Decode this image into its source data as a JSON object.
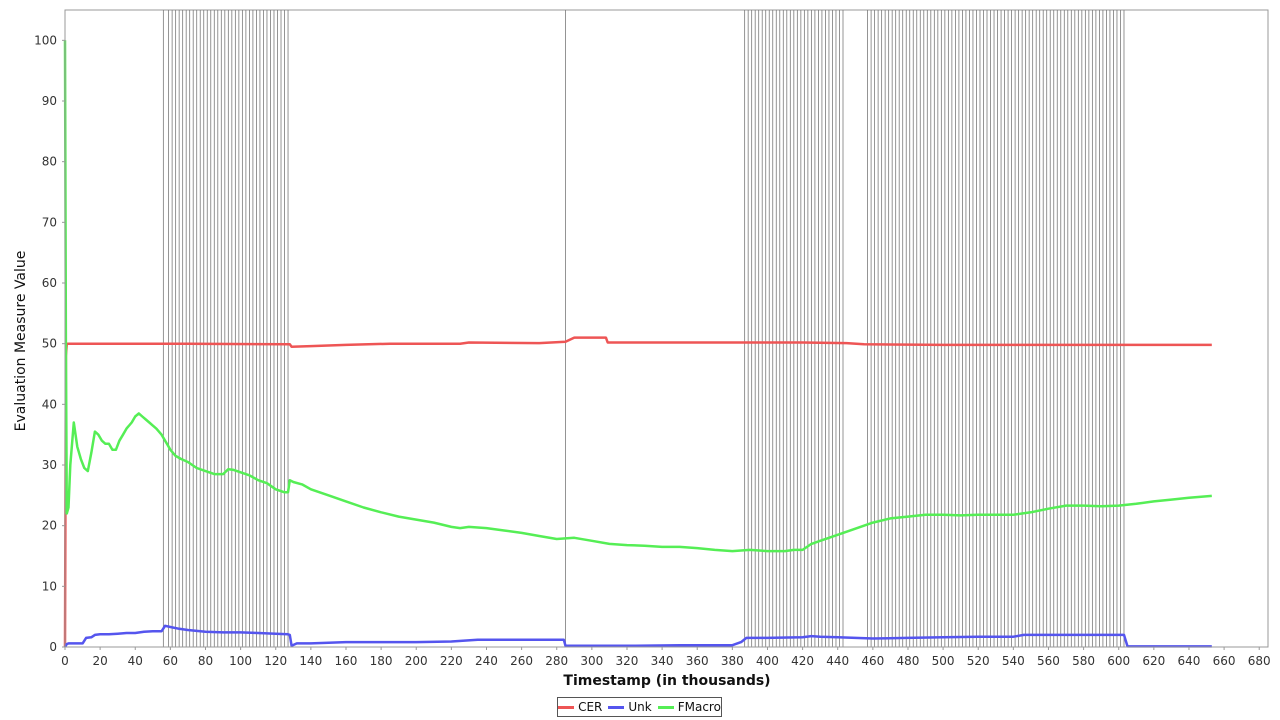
{
  "chart_data": {
    "type": "line",
    "xlabel": "Timestamp (in thousands)",
    "ylabel": "Evaluation Measure Value",
    "xlim": [
      0,
      685
    ],
    "ylim": [
      0,
      105
    ],
    "xticks": [
      0,
      20,
      40,
      60,
      80,
      100,
      120,
      140,
      160,
      180,
      200,
      220,
      240,
      260,
      280,
      300,
      320,
      340,
      360,
      380,
      400,
      420,
      440,
      460,
      480,
      500,
      520,
      540,
      560,
      580,
      600,
      620,
      640,
      660,
      680
    ],
    "yticks": [
      0,
      10,
      20,
      30,
      40,
      50,
      60,
      70,
      80,
      90,
      100
    ],
    "legend_position": "bottom-center",
    "grid": false,
    "drift_markers": [
      56,
      59,
      61,
      63,
      65,
      67,
      69,
      71,
      73,
      75,
      77,
      79,
      81,
      83,
      85,
      87,
      89,
      91,
      93,
      95,
      97,
      99,
      101,
      103,
      105,
      107,
      109,
      111,
      113,
      115,
      117,
      119,
      121,
      123,
      125,
      127,
      285,
      387,
      389,
      391,
      393,
      395,
      397,
      399,
      401,
      403,
      405,
      407,
      409,
      411,
      413,
      415,
      417,
      419,
      421,
      423,
      425,
      427,
      429,
      431,
      433,
      435,
      437,
      439,
      441,
      443,
      457,
      459,
      461,
      463,
      465,
      467,
      469,
      471,
      473,
      475,
      477,
      479,
      481,
      483,
      485,
      487,
      489,
      491,
      493,
      495,
      497,
      499,
      501,
      503,
      505,
      507,
      509,
      511,
      513,
      515,
      517,
      519,
      521,
      523,
      525,
      527,
      529,
      531,
      533,
      535,
      537,
      539,
      541,
      543,
      545,
      547,
      549,
      551,
      553,
      555,
      557,
      559,
      561,
      563,
      565,
      567,
      569,
      571,
      573,
      575,
      577,
      579,
      581,
      583,
      585,
      587,
      589,
      591,
      593,
      595,
      597,
      599,
      601,
      603
    ],
    "series": [
      {
        "name": "CER",
        "color": "#ee5555",
        "x": [
          0,
          0.5,
          1,
          10,
          70,
          128,
          129,
          140,
          160,
          185,
          225,
          230,
          270,
          285,
          290,
          308,
          309,
          360,
          420,
          445,
          455,
          500,
          560,
          653
        ],
        "y": [
          0,
          48,
          50,
          50,
          50,
          49.9,
          49.5,
          49.6,
          49.8,
          50,
          50,
          50.2,
          50.1,
          50.3,
          51,
          51,
          50.2,
          50.2,
          50.2,
          50.1,
          49.9,
          49.8,
          49.8,
          49.8
        ]
      },
      {
        "name": "Unk",
        "color": "#5555ee",
        "x": [
          0,
          1,
          2,
          10,
          12,
          15,
          17,
          20,
          25,
          30,
          35,
          40,
          45,
          50,
          55,
          57,
          60,
          65,
          70,
          80,
          90,
          100,
          110,
          120,
          127,
          128,
          129,
          132,
          140,
          160,
          200,
          220,
          235,
          260,
          284,
          285,
          290,
          320,
          350,
          380,
          385,
          388,
          400,
          420,
          425,
          430,
          440,
          460,
          480,
          500,
          520,
          540,
          546,
          560,
          580,
          603,
          605,
          620,
          653
        ],
        "y": [
          0,
          0.5,
          0.6,
          0.6,
          1.5,
          1.6,
          2.0,
          2.1,
          2.1,
          2.2,
          2.3,
          2.3,
          2.5,
          2.6,
          2.6,
          3.5,
          3.3,
          3.0,
          2.8,
          2.5,
          2.4,
          2.4,
          2.3,
          2.2,
          2.1,
          2.0,
          0.2,
          0.6,
          0.6,
          0.8,
          0.8,
          0.9,
          1.2,
          1.2,
          1.2,
          0.2,
          0.2,
          0.2,
          0.3,
          0.3,
          0.8,
          1.5,
          1.5,
          1.6,
          1.8,
          1.7,
          1.6,
          1.4,
          1.5,
          1.6,
          1.7,
          1.7,
          2.0,
          2.0,
          2.0,
          2.0,
          0.1,
          0.1,
          0.1
        ]
      },
      {
        "name": "FMacro",
        "color": "#55ee55",
        "x": [
          0,
          0.5,
          1,
          2,
          3,
          5,
          7,
          9,
          11,
          13,
          15,
          17,
          19,
          21,
          23,
          25,
          27,
          29,
          31,
          33,
          35,
          38,
          40,
          42,
          44,
          46,
          48,
          50,
          52,
          55,
          58,
          60,
          63,
          66,
          70,
          75,
          80,
          85,
          90,
          93,
          96,
          100,
          105,
          110,
          115,
          120,
          125,
          127,
          128,
          130,
          135,
          140,
          150,
          160,
          170,
          180,
          190,
          200,
          210,
          220,
          225,
          230,
          240,
          250,
          260,
          270,
          280,
          290,
          300,
          310,
          320,
          330,
          340,
          350,
          360,
          370,
          380,
          390,
          400,
          410,
          415,
          420,
          425,
          430,
          440,
          450,
          460,
          470,
          480,
          490,
          500,
          510,
          520,
          530,
          540,
          550,
          560,
          570,
          580,
          590,
          600,
          610,
          620,
          630,
          640,
          653
        ],
        "y": [
          100,
          50,
          22,
          23,
          30,
          37,
          33,
          31,
          29.5,
          29,
          32,
          35.5,
          35,
          34,
          33.5,
          33.5,
          32.5,
          32.5,
          34,
          35,
          36,
          37,
          38,
          38.5,
          38,
          37.5,
          37,
          36.5,
          36,
          35,
          33.5,
          32.5,
          31.5,
          31,
          30.5,
          29.5,
          29,
          28.5,
          28.5,
          29.3,
          29.2,
          28.8,
          28.3,
          27.5,
          27,
          26,
          25.5,
          25.5,
          27.5,
          27.2,
          26.8,
          26,
          25,
          24,
          23,
          22.2,
          21.5,
          21,
          20.5,
          19.8,
          19.6,
          19.8,
          19.6,
          19.2,
          18.8,
          18.3,
          17.8,
          18,
          17.5,
          17,
          16.8,
          16.7,
          16.5,
          16.5,
          16.3,
          16,
          15.8,
          16,
          15.8,
          15.8,
          16,
          16,
          17,
          17.5,
          18.5,
          19.5,
          20.5,
          21.2,
          21.5,
          21.8,
          21.8,
          21.7,
          21.8,
          21.8,
          21.8,
          22.2,
          22.8,
          23.3,
          23.3,
          23.2,
          23.3,
          23.6,
          24,
          24.3,
          24.6,
          24.9
        ]
      }
    ]
  }
}
